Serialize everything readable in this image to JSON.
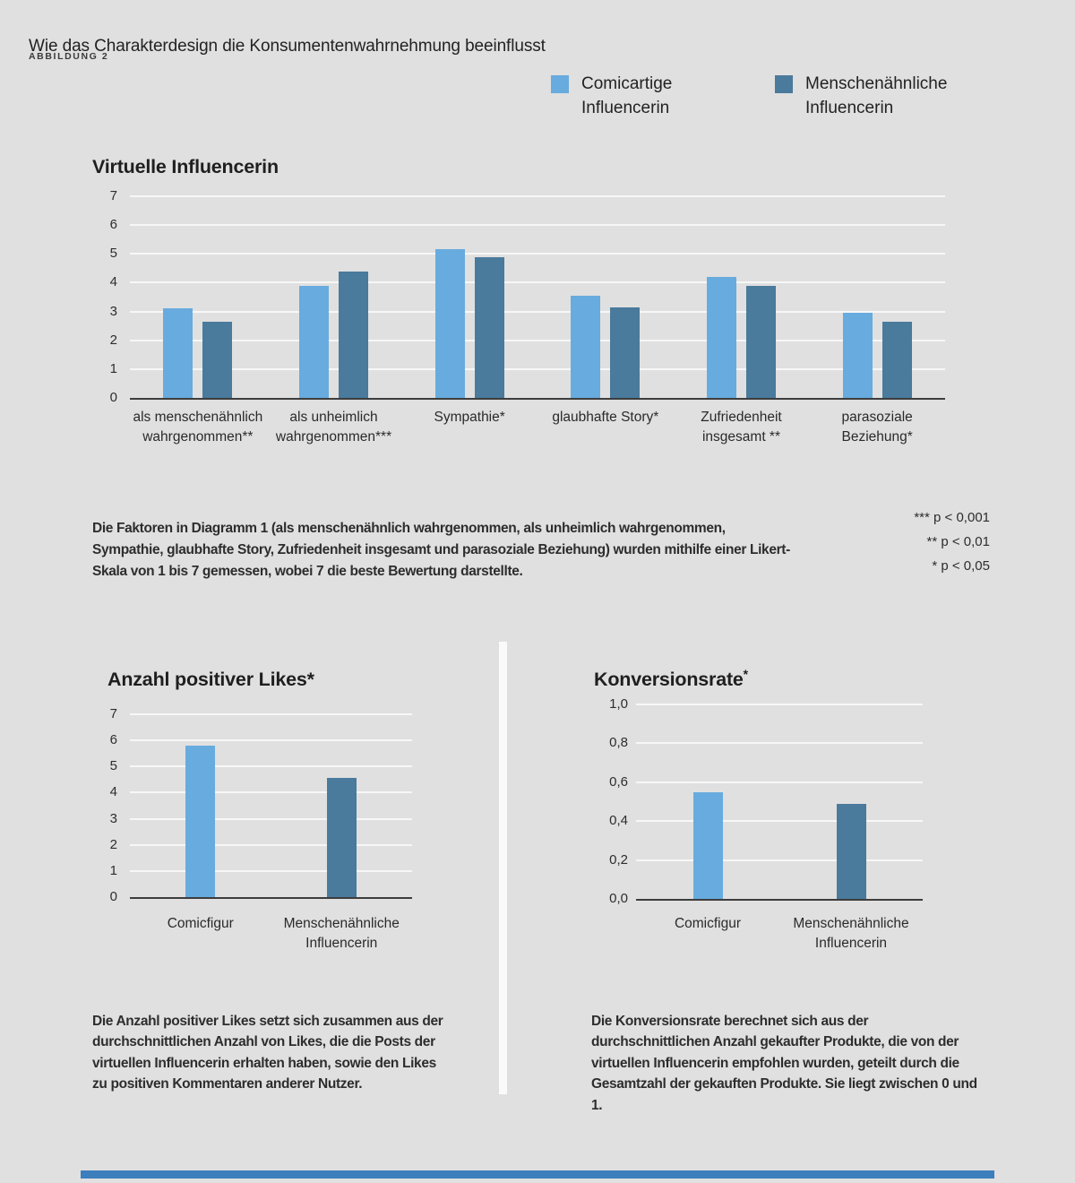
{
  "header": {
    "title": "Wie das Charakterdesign die Konsumentenwahrnehmung beeinflusst",
    "figure_label": "ABBILDUNG 2"
  },
  "legend": {
    "items": [
      {
        "label": "Comicartige\nInfluencerin",
        "color": "#68abde"
      },
      {
        "label": "Menschenähnliche\nInfluencerin",
        "color": "#4a7a9c"
      }
    ]
  },
  "colors": {
    "background": "#e0e0e0",
    "light_series": "#68abde",
    "dark_series": "#4a7a9c",
    "gridline": "#f7f7f7",
    "axis": "#3d3d3d",
    "bottom_bar": "#3d7ebd"
  },
  "footnote": {
    "text": "Die Faktoren in Diagramm 1 (als menschenähnlich wahrgenommen, als unheimlich wahrgenommen, Sympathie, glaubhafte Story, Zufriedenheit insgesamt und parasoziale Beziehung) wurden mithilfe einer Likert-Skala von 1 bis 7 gemessen, wobei 7 die beste Bewertung darstellte.",
    "significance": "*** p < 0,001\n** p < 0,01\n* p < 0,05"
  },
  "notes": {
    "likes": "Die Anzahl positiver Likes setzt sich zusammen aus der durchschnittlichen Anzahl von Likes, die die Posts der virtuellen Influencerin erhalten haben, sowie den Likes zu positiven Kommentaren anderer Nutzer.",
    "conversion": "Die Konversionsrate berechnet sich aus der durchschnittlichen Anzahl gekaufter Produkte, die von der virtuellen Influencerin empfohlen wurden, geteilt durch die Gesamtzahl der gekauften Produkte. Sie liegt zwischen 0 und 1."
  },
  "chart_data": [
    {
      "id": "virtuelle-influencerin",
      "type": "bar",
      "title": "Virtuelle Influencerin",
      "categories": [
        "als menschenähnlich\nwahrgenommen**",
        "als unheimlich\nwahrgenommen***",
        "Sympathie*",
        "glaubhafte Story*",
        "Zufriedenheit\ninsgesamt **",
        "parasoziale\nBeziehung*"
      ],
      "series": [
        {
          "name": "Comicartige Influencerin",
          "color": "#68abde",
          "values": [
            3.1,
            3.9,
            5.15,
            3.55,
            4.2,
            2.95
          ]
        },
        {
          "name": "Menschenähnliche Influencerin",
          "color": "#4a7a9c",
          "values": [
            2.65,
            4.4,
            4.9,
            3.15,
            3.9,
            2.65
          ]
        }
      ],
      "ylim": [
        0,
        7
      ],
      "yticks": [
        {
          "value": 0,
          "label": "0"
        },
        {
          "value": 1,
          "label": "1"
        },
        {
          "value": 2,
          "label": "2"
        },
        {
          "value": 3,
          "label": "3"
        },
        {
          "value": 4,
          "label": "4"
        },
        {
          "value": 5,
          "label": "5"
        },
        {
          "value": 6,
          "label": "6"
        },
        {
          "value": 7,
          "label": "7"
        }
      ],
      "grid": true,
      "legend_position": "top-right",
      "scale_note": "Likert-Skala von 1 bis 7, 7 = beste Bewertung"
    },
    {
      "id": "anzahl-positiver-likes",
      "type": "bar",
      "title": "Anzahl positiver Likes*",
      "bars": [
        {
          "label": "Comicfigur",
          "value": 5.8,
          "color": "#68abde"
        },
        {
          "label": "Menschenähnliche\nInfluencerin",
          "value": 4.55,
          "color": "#4a7a9c"
        }
      ],
      "ylim": [
        0,
        7
      ],
      "yticks": [
        {
          "value": 0,
          "label": "0"
        },
        {
          "value": 1,
          "label": "1"
        },
        {
          "value": 2,
          "label": "2"
        },
        {
          "value": 3,
          "label": "3"
        },
        {
          "value": 4,
          "label": "4"
        },
        {
          "value": 5,
          "label": "5"
        },
        {
          "value": 6,
          "label": "6"
        },
        {
          "value": 7,
          "label": "7"
        }
      ],
      "grid": true
    },
    {
      "id": "konversionsrate",
      "type": "bar",
      "title": "Konversionsrate",
      "title_superscript": "*",
      "bars": [
        {
          "label": "Comicfigur",
          "value": 0.55,
          "color": "#68abde"
        },
        {
          "label": "Menschenähnliche\nInfluencerin",
          "value": 0.49,
          "color": "#4a7a9c"
        }
      ],
      "ylim": [
        0,
        1
      ],
      "yticks": [
        {
          "value": 0,
          "label": "0,0"
        },
        {
          "value": 0.2,
          "label": "0,2"
        },
        {
          "value": 0.4,
          "label": "0,4"
        },
        {
          "value": 0.6,
          "label": "0,6"
        },
        {
          "value": 0.8,
          "label": "0,8"
        },
        {
          "value": 1,
          "label": "1,0"
        }
      ],
      "grid": true
    }
  ]
}
